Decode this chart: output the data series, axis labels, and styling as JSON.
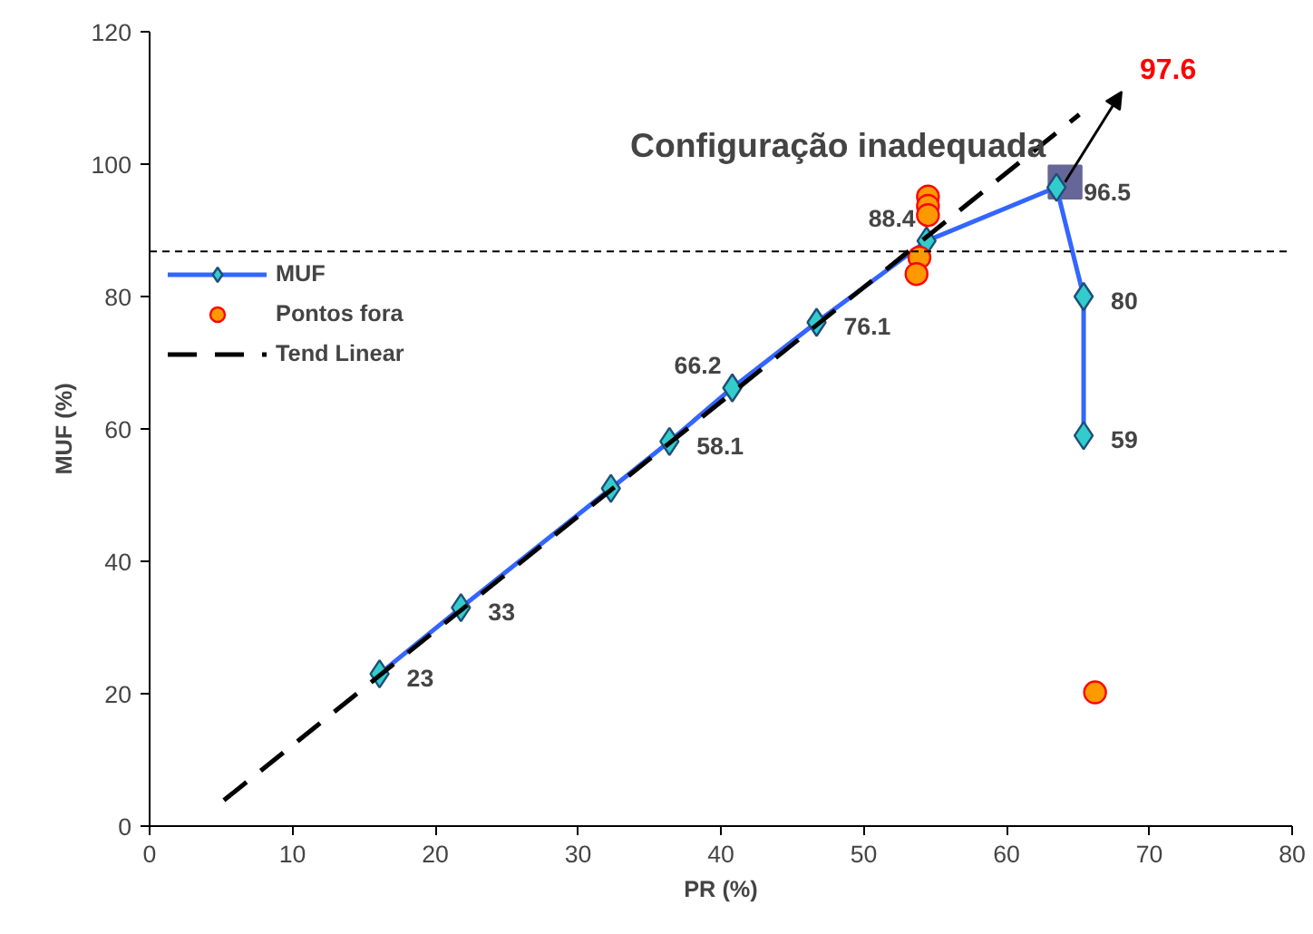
{
  "chart_data": {
    "type": "line",
    "xlabel": "PR (%)",
    "ylabel": "MUF (%)",
    "xlim": [
      0,
      80
    ],
    "xticks": [
      0,
      10,
      20,
      30,
      40,
      50,
      60,
      70,
      80
    ],
    "ylim": [
      0,
      120
    ],
    "yticks": [
      0,
      20,
      40,
      60,
      80,
      100,
      120
    ],
    "grid": false,
    "legend": "top left",
    "series": [
      {
        "type": "scatter",
        "marker": "square",
        "color": "#666699",
        "x": [
          64.1
        ],
        "values": [
          97.3
        ]
      },
      {
        "name": "MUF",
        "marker": "diamond",
        "color": "#3366ff",
        "x": [
          16.1,
          21.8,
          32.3,
          36.4,
          40.8,
          46.7,
          54.4,
          63.5,
          65.4,
          65.4
        ],
        "values": [
          23,
          33,
          51,
          58.1,
          66.2,
          76.1,
          88.4,
          96.5,
          80,
          59
        ],
        "value_labels": [
          "23",
          "33",
          null,
          "58.1",
          "66.2",
          "76.1",
          "88.4",
          "96.5",
          "80",
          "59"
        ]
      },
      {
        "name": "Pontos fora",
        "type": "scatter",
        "marker": "circle",
        "color": "#ff9900",
        "x": [
          54.5,
          54.5,
          54.5,
          53.9,
          53.7,
          66.2
        ],
        "values": [
          95.1,
          93.7,
          92.3,
          85.9,
          83.4,
          20.2
        ]
      },
      {
        "name": "Tend Linear",
        "type": "line",
        "marker": "none",
        "line_style": "dashed",
        "color": "#000000",
        "x": [
          5.2,
          65.1
        ],
        "values": [
          3.9,
          107.5
        ]
      }
    ],
    "ref_lines": [
      {
        "axis": "y",
        "value": 86.8,
        "line_style": "dotted",
        "color": "#000000"
      }
    ],
    "annotations": [
      "Configuração inadequada",
      "97.6"
    ]
  }
}
